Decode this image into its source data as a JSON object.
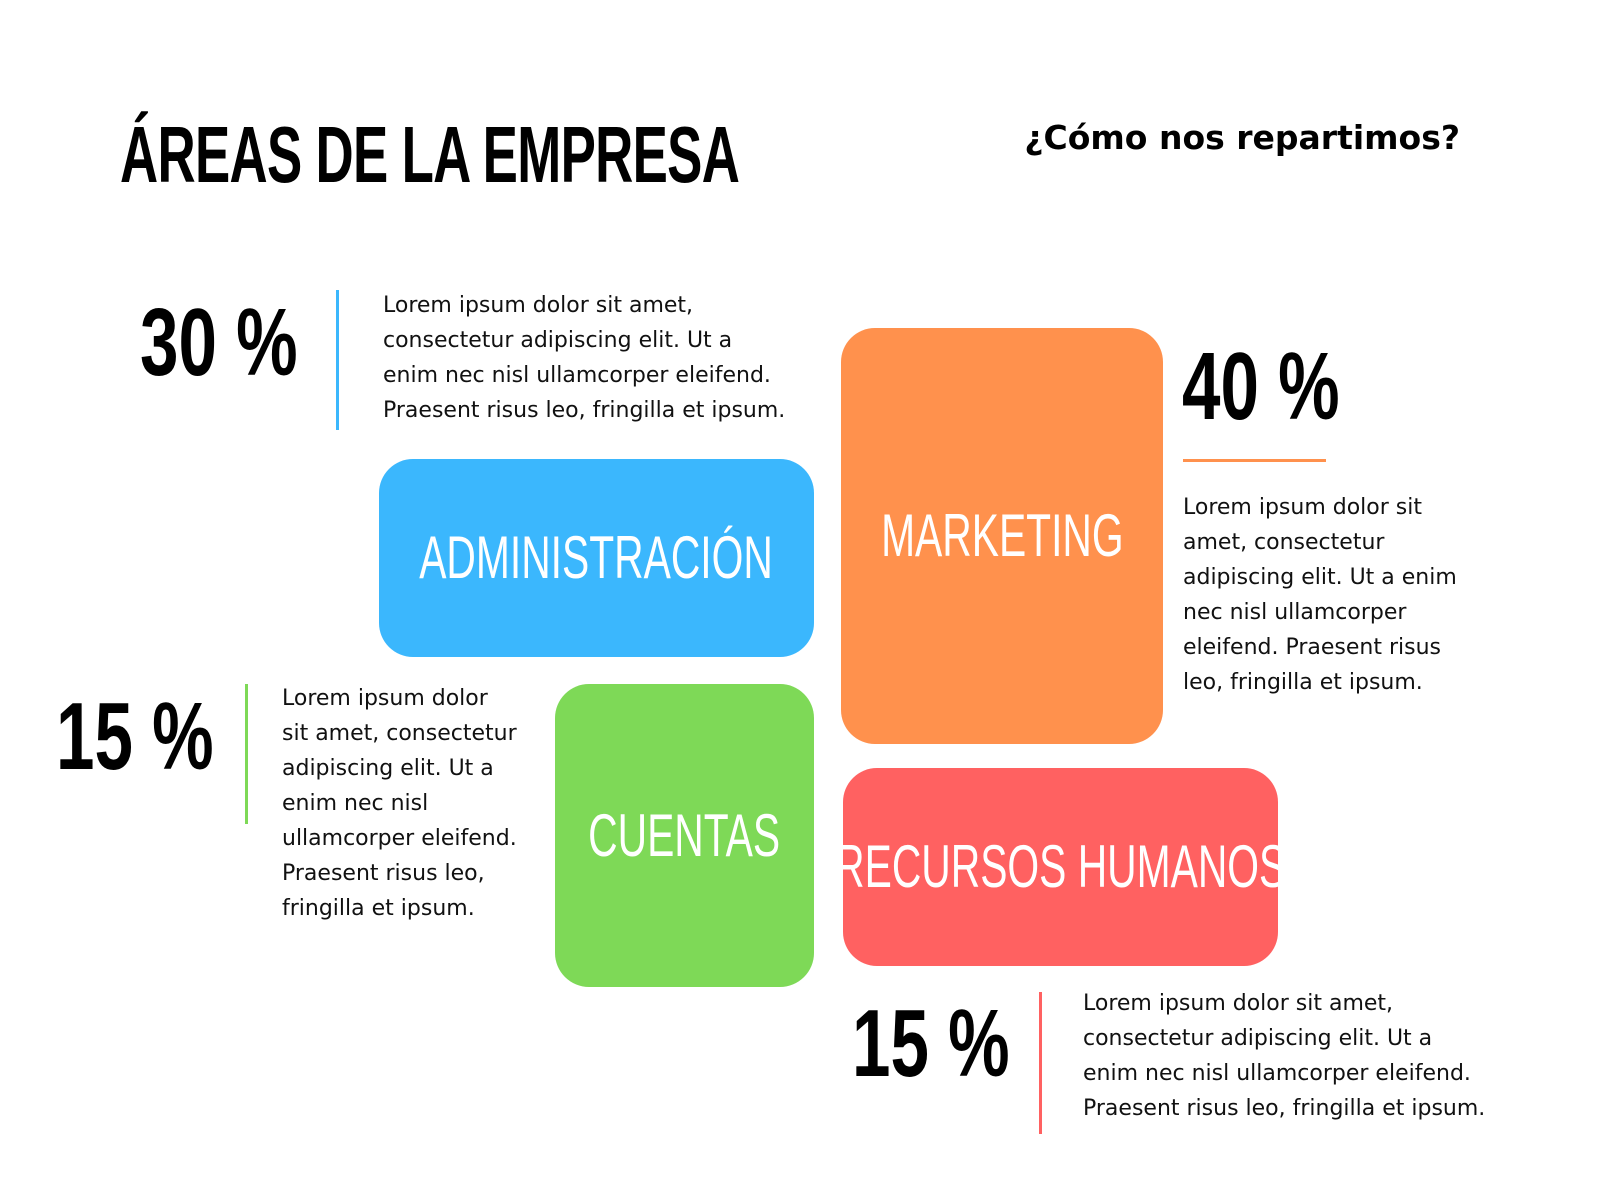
{
  "header": {
    "title": "ÁREAS DE LA EMPRESA",
    "subtitle": "¿Cómo nos repartimos?"
  },
  "colors": {
    "administracion": "#3BB7FD",
    "marketing": "#FF914D",
    "cuentas": "#7ED957",
    "recursos_humanos": "#FF6161"
  },
  "areas": {
    "administracion": {
      "label": "ADMINISTRACIÓN",
      "percent": "30 %",
      "desc": [
        "Lorem ipsum dolor sit amet,",
        "consectetur adipiscing elit. Ut a",
        "enim nec nisl ullamcorper eleifend.",
        "Praesent risus leo, fringilla et ipsum."
      ]
    },
    "marketing": {
      "label": "MARKETING",
      "percent": "40 %",
      "desc": [
        "Lorem ipsum dolor sit",
        "amet, consectetur",
        "adipiscing elit. Ut a enim",
        "nec nisl ullamcorper",
        "eleifend. Praesent risus",
        "leo, fringilla et ipsum."
      ]
    },
    "cuentas": {
      "label": "CUENTAS",
      "percent": "15 %",
      "desc": [
        "Lorem ipsum dolor",
        "sit amet, consectetur",
        "adipiscing elit. Ut a",
        "enim nec nisl",
        "ullamcorper eleifend.",
        "Praesent risus leo,",
        "fringilla et ipsum."
      ]
    },
    "recursos_humanos": {
      "label": "RECURSOS HUMANOS",
      "percent": "15 %",
      "desc": [
        "Lorem ipsum dolor sit amet,",
        "consectetur adipiscing elit. Ut a",
        "enim nec nisl ullamcorper eleifend.",
        "Praesent risus leo, fringilla et ipsum."
      ]
    }
  }
}
